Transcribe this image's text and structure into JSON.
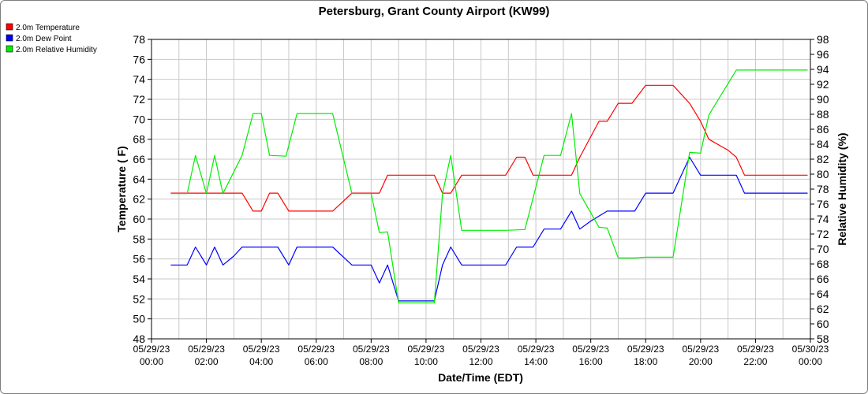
{
  "chart_data": {
    "type": "line",
    "title": "Petersburg, Grant County Airport (KW99)",
    "xlabel": "Date/Time (EDT)",
    "ylabel_left": "Temperature ( F)",
    "ylabel_right": "Relative Humidity (%)",
    "ylim_left": [
      48,
      78
    ],
    "ylim_right": [
      58,
      98
    ],
    "xlim_hours": [
      0,
      24
    ],
    "x_unit": "hours after 05/29/23 00:00 EDT",
    "grid": true,
    "legend_position": "top-left",
    "y_ticks_left": [
      "48",
      "50",
      "52",
      "54",
      "56",
      "58",
      "60",
      "62",
      "64",
      "66",
      "68",
      "70",
      "72",
      "74",
      "76",
      "78"
    ],
    "y_ticks_right": [
      "58",
      "60",
      "62",
      "64",
      "66",
      "68",
      "70",
      "72",
      "74",
      "76",
      "78",
      "80",
      "82",
      "84",
      "86",
      "88",
      "90",
      "92",
      "94",
      "96",
      "98"
    ],
    "x_ticks": [
      {
        "date": "05/29/23",
        "time": "00:00"
      },
      {
        "date": "05/29/23",
        "time": "02:00"
      },
      {
        "date": "05/29/23",
        "time": "04:00"
      },
      {
        "date": "05/29/23",
        "time": "06:00"
      },
      {
        "date": "05/29/23",
        "time": "08:00"
      },
      {
        "date": "05/29/23",
        "time": "10:00"
      },
      {
        "date": "05/29/23",
        "time": "12:00"
      },
      {
        "date": "05/29/23",
        "time": "14:00"
      },
      {
        "date": "05/29/23",
        "time": "16:00"
      },
      {
        "date": "05/29/23",
        "time": "18:00"
      },
      {
        "date": "05/29/23",
        "time": "20:00"
      },
      {
        "date": "05/29/23",
        "time": "22:00"
      },
      {
        "date": "05/30/23",
        "time": "00:00"
      }
    ],
    "series": [
      {
        "name": "2.0m Temperature",
        "color": "#ff0000",
        "axis": "left",
        "points": [
          [
            0.7,
            62.6
          ],
          [
            1.3,
            62.6
          ],
          [
            1.6,
            62.6
          ],
          [
            2.0,
            62.6
          ],
          [
            2.3,
            62.6
          ],
          [
            2.7,
            62.6
          ],
          [
            3.0,
            62.6
          ],
          [
            3.3,
            62.6
          ],
          [
            3.7,
            60.8
          ],
          [
            4.0,
            60.8
          ],
          [
            4.3,
            62.6
          ],
          [
            4.6,
            62.6
          ],
          [
            5.0,
            60.8
          ],
          [
            6.6,
            60.8
          ],
          [
            7.3,
            62.6
          ],
          [
            8.3,
            62.6
          ],
          [
            8.6,
            64.4
          ],
          [
            10.3,
            64.4
          ],
          [
            10.6,
            62.6
          ],
          [
            10.9,
            62.6
          ],
          [
            11.3,
            64.4
          ],
          [
            12.9,
            64.4
          ],
          [
            13.3,
            66.2
          ],
          [
            13.6,
            66.2
          ],
          [
            13.9,
            64.4
          ],
          [
            15.3,
            64.4
          ],
          [
            15.6,
            66.2
          ],
          [
            16.3,
            69.8
          ],
          [
            16.6,
            69.8
          ],
          [
            17.0,
            71.6
          ],
          [
            17.5,
            71.6
          ],
          [
            18.0,
            73.4
          ],
          [
            19.0,
            73.4
          ],
          [
            19.6,
            71.6
          ],
          [
            20.0,
            69.8
          ],
          [
            20.3,
            68.0
          ],
          [
            21.0,
            66.9
          ],
          [
            21.3,
            66.2
          ],
          [
            21.6,
            64.4
          ],
          [
            23.0,
            64.4
          ],
          [
            23.9,
            64.4
          ]
        ]
      },
      {
        "name": "2.0m Dew Point",
        "color": "#0000ff",
        "axis": "left",
        "points": [
          [
            0.7,
            55.4
          ],
          [
            1.3,
            55.4
          ],
          [
            1.6,
            57.2
          ],
          [
            2.0,
            55.4
          ],
          [
            2.3,
            57.2
          ],
          [
            2.6,
            55.4
          ],
          [
            3.0,
            56.3
          ],
          [
            3.3,
            57.2
          ],
          [
            4.6,
            57.2
          ],
          [
            5.0,
            55.4
          ],
          [
            5.3,
            57.2
          ],
          [
            6.6,
            57.2
          ],
          [
            7.3,
            55.4
          ],
          [
            8.0,
            55.4
          ],
          [
            8.3,
            53.6
          ],
          [
            8.6,
            55.4
          ],
          [
            9.0,
            51.8
          ],
          [
            10.3,
            51.8
          ],
          [
            10.6,
            55.4
          ],
          [
            10.9,
            57.2
          ],
          [
            11.3,
            55.4
          ],
          [
            12.9,
            55.4
          ],
          [
            13.3,
            57.2
          ],
          [
            13.9,
            57.2
          ],
          [
            14.3,
            59.0
          ],
          [
            14.9,
            59.0
          ],
          [
            15.3,
            60.8
          ],
          [
            15.6,
            59.0
          ],
          [
            16.0,
            59.8
          ],
          [
            16.6,
            60.8
          ],
          [
            17.6,
            60.8
          ],
          [
            18.0,
            62.6
          ],
          [
            19.0,
            62.6
          ],
          [
            19.6,
            66.2
          ],
          [
            20.0,
            64.4
          ],
          [
            21.3,
            64.4
          ],
          [
            21.6,
            62.6
          ],
          [
            23.0,
            62.6
          ],
          [
            23.9,
            62.6
          ]
        ]
      },
      {
        "name": "2.0m Relative Humidity",
        "color": "#00ee00",
        "axis": "right",
        "points": [
          [
            0.7,
            77.4
          ],
          [
            1.3,
            77.4
          ],
          [
            1.6,
            82.5
          ],
          [
            2.0,
            77.4
          ],
          [
            2.3,
            82.5
          ],
          [
            2.6,
            77.4
          ],
          [
            3.3,
            82.5
          ],
          [
            3.7,
            88.1
          ],
          [
            4.0,
            88.1
          ],
          [
            4.3,
            82.5
          ],
          [
            4.9,
            82.4
          ],
          [
            5.3,
            88.1
          ],
          [
            6.6,
            88.1
          ],
          [
            7.3,
            77.4
          ],
          [
            8.0,
            77.4
          ],
          [
            8.3,
            72.2
          ],
          [
            8.6,
            72.3
          ],
          [
            9.0,
            62.8
          ],
          [
            10.3,
            62.8
          ],
          [
            10.6,
            77.4
          ],
          [
            10.9,
            82.5
          ],
          [
            11.3,
            72.5
          ],
          [
            12.9,
            72.5
          ],
          [
            13.6,
            72.6
          ],
          [
            14.3,
            82.5
          ],
          [
            14.9,
            82.5
          ],
          [
            15.3,
            88.1
          ],
          [
            15.6,
            77.4
          ],
          [
            16.3,
            72.9
          ],
          [
            16.6,
            72.8
          ],
          [
            17.0,
            68.8
          ],
          [
            17.6,
            68.8
          ],
          [
            18.0,
            68.9
          ],
          [
            19.0,
            68.9
          ],
          [
            19.6,
            82.9
          ],
          [
            20.0,
            82.8
          ],
          [
            20.3,
            87.9
          ],
          [
            21.3,
            93.9
          ],
          [
            23.0,
            93.9
          ],
          [
            23.9,
            93.9
          ]
        ]
      }
    ]
  }
}
